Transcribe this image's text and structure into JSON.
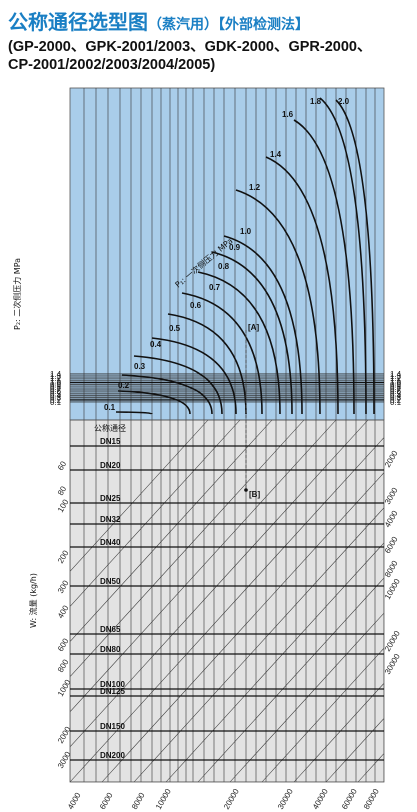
{
  "title": {
    "main": "公称通径选型图",
    "paren1": "（蒸汽用）",
    "paren2": "【外部检测法】",
    "models_line1": "(GP-2000、GPK-2001/2003、GDK-2000、GPR-2000、",
    "models_line2": "CP-2001/2002/2003/2004/2005)"
  },
  "colors": {
    "upper_bg": "#a9cdea",
    "lower_bg": "#e3e3e3",
    "curve": "#111111",
    "grid": "#333333"
  },
  "chart_data": [
    {
      "type": "line",
      "name_label": "upper",
      "ylabel": "P₂: 二次侧压力 MPa",
      "y_ticks": [
        "1.4",
        "1.3",
        "1.2",
        "1.1",
        "1.0",
        "0.9",
        "0.8",
        "0.7",
        "0.6",
        "0.5",
        "0.4",
        "0.3",
        "0.2",
        "0.1"
      ],
      "series_label": "P₁: 一次侧压力 MPa",
      "curves": [
        "0.1",
        "0.2",
        "0.3",
        "0.4",
        "0.5",
        "0.6",
        "0.7",
        "0.8",
        "0.9",
        "1.0",
        "1.2",
        "1.4",
        "1.6",
        "1.8",
        "2.0"
      ],
      "marker_a": "A"
    },
    {
      "type": "line",
      "name_label": "lower",
      "ylabel": "W: 流量 (kg/h)",
      "header": "公称通径",
      "dn_labels": [
        "DN15",
        "DN20",
        "DN25",
        "DN32",
        "DN40",
        "DN50",
        "DN65",
        "DN80",
        "DN100",
        "DN125",
        "DN150",
        "DN200"
      ],
      "left_ticks": [
        "60",
        "80",
        "100",
        "200",
        "300",
        "400",
        "600",
        "800",
        "1000",
        "2000",
        "3000"
      ],
      "right_ticks": [
        "2000",
        "3000",
        "4000",
        "6000",
        "8000",
        "10000",
        "20000",
        "30000"
      ],
      "x_ticks": [
        "4000",
        "6000",
        "8000",
        "10000",
        "20000",
        "30000",
        "40000",
        "60000",
        "80000"
      ],
      "marker_b": "B"
    }
  ]
}
